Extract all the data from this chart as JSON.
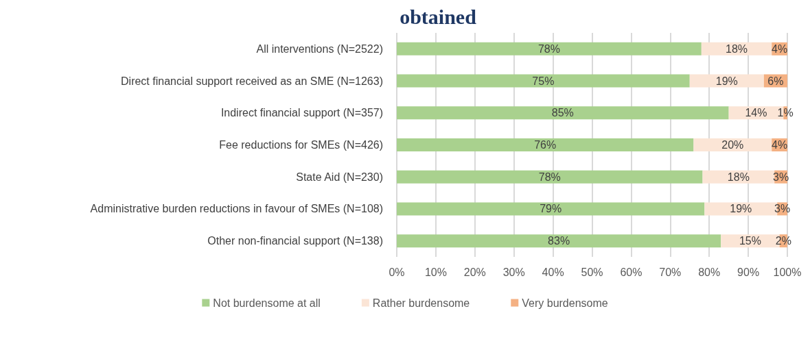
{
  "chart_data": {
    "type": "bar",
    "orientation": "horizontal",
    "stacked": true,
    "title": "obtained",
    "categories": [
      "All interventions (N=2522)",
      "Direct financial support received as an SME (N=1263)",
      "Indirect financial support (N=357)",
      "Fee reductions for SMEs (N=426)",
      "State Aid (N=230)",
      "Administrative burden reductions in favour of SMEs (N=108)",
      "Other non-financial support (N=138)"
    ],
    "series": [
      {
        "name": "Not burdensome at all",
        "color": "#a9d18e",
        "values": [
          78,
          75,
          85,
          76,
          78.3,
          78.8,
          83
        ],
        "value_labels": [
          "78%",
          "75%",
          "85%",
          "76%",
          "78%",
          "79%",
          "83%"
        ]
      },
      {
        "name": "Rather burdensome",
        "color": "#fbe5d6",
        "values": [
          18,
          19,
          14,
          20,
          18.4,
          18.6,
          15
        ],
        "value_labels": [
          "18%",
          "19%",
          "14%",
          "20%",
          "18%",
          "19%",
          "15%"
        ]
      },
      {
        "name": "Very burdensome",
        "color": "#f4b183",
        "values": [
          4,
          6,
          1,
          4,
          3.3,
          2.6,
          2
        ],
        "value_labels": [
          "4%",
          "6%",
          "1%",
          "4%",
          "3%",
          "3%",
          "2%"
        ]
      }
    ],
    "xlim": [
      0,
      100
    ],
    "xticks": [
      {
        "value": 0,
        "label": "0%"
      },
      {
        "value": 10,
        "label": "10%"
      },
      {
        "value": 20,
        "label": "20%"
      },
      {
        "value": 30,
        "label": "30%"
      },
      {
        "value": 40,
        "label": "40%"
      },
      {
        "value": 50,
        "label": "50%"
      },
      {
        "value": 60,
        "label": "60%"
      },
      {
        "value": 70,
        "label": "70%"
      },
      {
        "value": 80,
        "label": "80%"
      },
      {
        "value": 90,
        "label": "90%"
      },
      {
        "value": 100,
        "label": "100%"
      }
    ],
    "grid": "x",
    "legend": "bottom"
  }
}
